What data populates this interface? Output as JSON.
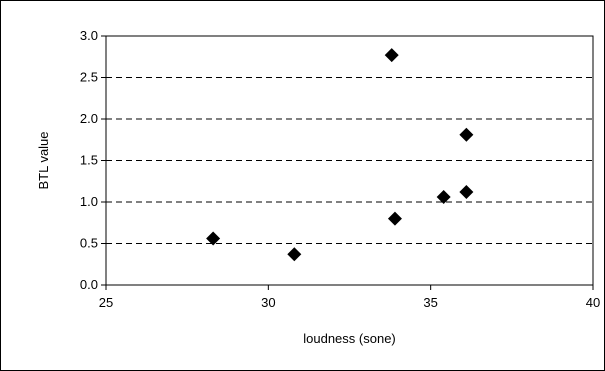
{
  "chart_data": {
    "type": "scatter",
    "title": "",
    "xlabel": "loudness (sone)",
    "ylabel": "BTL value",
    "xlim": [
      25,
      40
    ],
    "ylim": [
      0,
      3
    ],
    "x_ticks": [
      "25",
      "30",
      "35",
      "40"
    ],
    "y_ticks": [
      "0.0",
      "0.5",
      "1.0",
      "1.5",
      "2.0",
      "2.5",
      "3.0"
    ],
    "grid": "horizontal dashed",
    "legend": "none",
    "marker": "diamond",
    "marker_color": "#000000",
    "points": [
      {
        "x": 28.3,
        "y": 0.56
      },
      {
        "x": 30.8,
        "y": 0.37
      },
      {
        "x": 33.8,
        "y": 2.77
      },
      {
        "x": 33.9,
        "y": 0.8
      },
      {
        "x": 35.4,
        "y": 1.06
      },
      {
        "x": 36.1,
        "y": 1.81
      },
      {
        "x": 36.1,
        "y": 1.12
      }
    ]
  }
}
